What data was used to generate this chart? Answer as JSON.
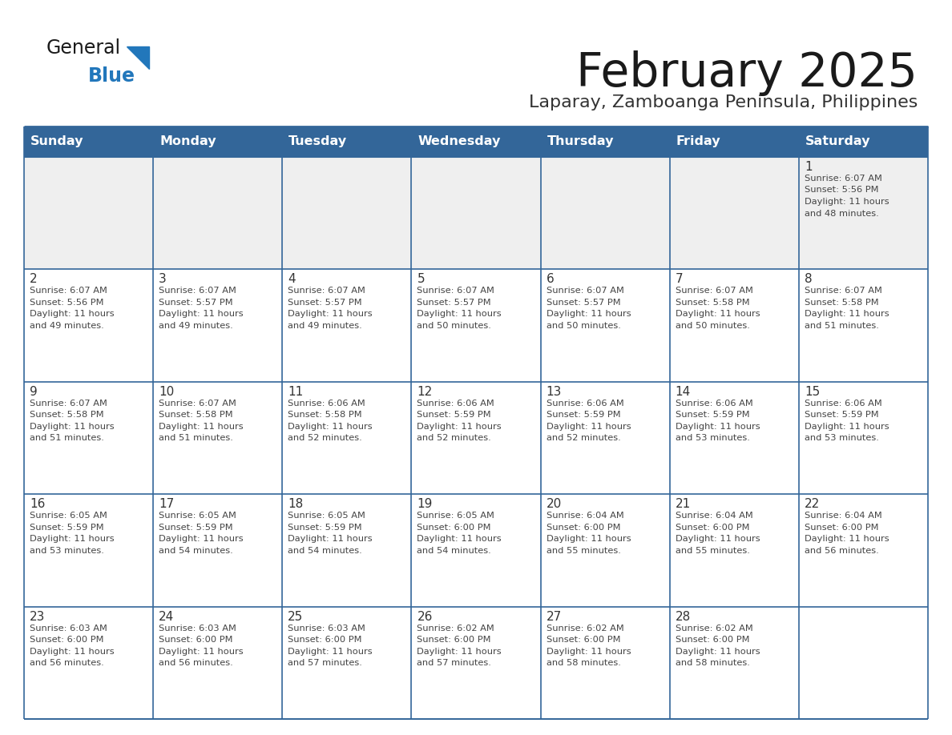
{
  "title": "February 2025",
  "subtitle": "Laparay, Zamboanga Peninsula, Philippines",
  "header_bg_color": "#336699",
  "header_text_color": "#FFFFFF",
  "cell_bg_color": "#FFFFFF",
  "first_row_bg_color": "#EFEFEF",
  "border_color": "#336699",
  "day_number_color": "#333333",
  "cell_text_color": "#444444",
  "title_color": "#1a1a1a",
  "subtitle_color": "#333333",
  "logo_general_color": "#1a1a1a",
  "logo_blue_color": "#2277BB",
  "logo_triangle_color": "#2277BB",
  "days_of_week": [
    "Sunday",
    "Monday",
    "Tuesday",
    "Wednesday",
    "Thursday",
    "Friday",
    "Saturday"
  ],
  "weeks": [
    [
      null,
      null,
      null,
      null,
      null,
      null,
      1
    ],
    [
      2,
      3,
      4,
      5,
      6,
      7,
      8
    ],
    [
      9,
      10,
      11,
      12,
      13,
      14,
      15
    ],
    [
      16,
      17,
      18,
      19,
      20,
      21,
      22
    ],
    [
      23,
      24,
      25,
      26,
      27,
      28,
      null
    ]
  ],
  "cell_data": {
    "1": {
      "sunrise": "6:07 AM",
      "sunset": "5:56 PM",
      "daylight": "11 hours and 48 minutes."
    },
    "2": {
      "sunrise": "6:07 AM",
      "sunset": "5:56 PM",
      "daylight": "11 hours and 49 minutes."
    },
    "3": {
      "sunrise": "6:07 AM",
      "sunset": "5:57 PM",
      "daylight": "11 hours and 49 minutes."
    },
    "4": {
      "sunrise": "6:07 AM",
      "sunset": "5:57 PM",
      "daylight": "11 hours and 49 minutes."
    },
    "5": {
      "sunrise": "6:07 AM",
      "sunset": "5:57 PM",
      "daylight": "11 hours and 50 minutes."
    },
    "6": {
      "sunrise": "6:07 AM",
      "sunset": "5:57 PM",
      "daylight": "11 hours and 50 minutes."
    },
    "7": {
      "sunrise": "6:07 AM",
      "sunset": "5:58 PM",
      "daylight": "11 hours and 50 minutes."
    },
    "8": {
      "sunrise": "6:07 AM",
      "sunset": "5:58 PM",
      "daylight": "11 hours and 51 minutes."
    },
    "9": {
      "sunrise": "6:07 AM",
      "sunset": "5:58 PM",
      "daylight": "11 hours and 51 minutes."
    },
    "10": {
      "sunrise": "6:07 AM",
      "sunset": "5:58 PM",
      "daylight": "11 hours and 51 minutes."
    },
    "11": {
      "sunrise": "6:06 AM",
      "sunset": "5:58 PM",
      "daylight": "11 hours and 52 minutes."
    },
    "12": {
      "sunrise": "6:06 AM",
      "sunset": "5:59 PM",
      "daylight": "11 hours and 52 minutes."
    },
    "13": {
      "sunrise": "6:06 AM",
      "sunset": "5:59 PM",
      "daylight": "11 hours and 52 minutes."
    },
    "14": {
      "sunrise": "6:06 AM",
      "sunset": "5:59 PM",
      "daylight": "11 hours and 53 minutes."
    },
    "15": {
      "sunrise": "6:06 AM",
      "sunset": "5:59 PM",
      "daylight": "11 hours and 53 minutes."
    },
    "16": {
      "sunrise": "6:05 AM",
      "sunset": "5:59 PM",
      "daylight": "11 hours and 53 minutes."
    },
    "17": {
      "sunrise": "6:05 AM",
      "sunset": "5:59 PM",
      "daylight": "11 hours and 54 minutes."
    },
    "18": {
      "sunrise": "6:05 AM",
      "sunset": "5:59 PM",
      "daylight": "11 hours and 54 minutes."
    },
    "19": {
      "sunrise": "6:05 AM",
      "sunset": "6:00 PM",
      "daylight": "11 hours and 54 minutes."
    },
    "20": {
      "sunrise": "6:04 AM",
      "sunset": "6:00 PM",
      "daylight": "11 hours and 55 minutes."
    },
    "21": {
      "sunrise": "6:04 AM",
      "sunset": "6:00 PM",
      "daylight": "11 hours and 55 minutes."
    },
    "22": {
      "sunrise": "6:04 AM",
      "sunset": "6:00 PM",
      "daylight": "11 hours and 56 minutes."
    },
    "23": {
      "sunrise": "6:03 AM",
      "sunset": "6:00 PM",
      "daylight": "11 hours and 56 minutes."
    },
    "24": {
      "sunrise": "6:03 AM",
      "sunset": "6:00 PM",
      "daylight": "11 hours and 56 minutes."
    },
    "25": {
      "sunrise": "6:03 AM",
      "sunset": "6:00 PM",
      "daylight": "11 hours and 57 minutes."
    },
    "26": {
      "sunrise": "6:02 AM",
      "sunset": "6:00 PM",
      "daylight": "11 hours and 57 minutes."
    },
    "27": {
      "sunrise": "6:02 AM",
      "sunset": "6:00 PM",
      "daylight": "11 hours and 58 minutes."
    },
    "28": {
      "sunrise": "6:02 AM",
      "sunset": "6:00 PM",
      "daylight": "11 hours and 58 minutes."
    }
  }
}
